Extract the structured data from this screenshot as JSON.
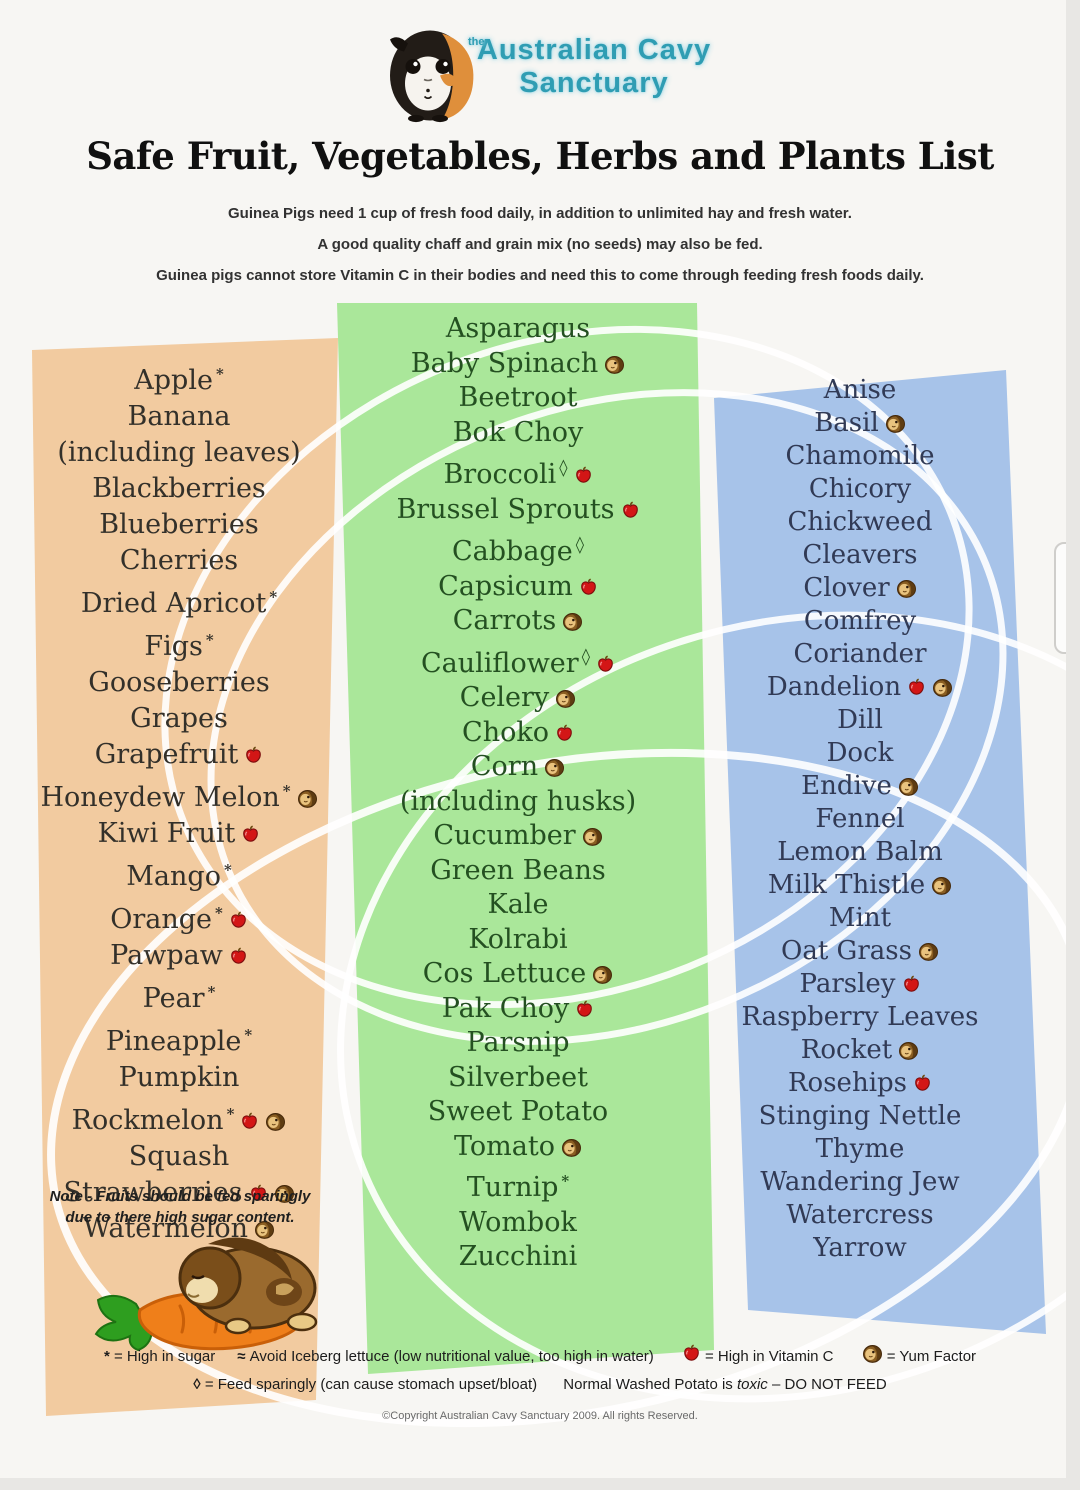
{
  "logo": {
    "prefix": "the",
    "line1": "Australian Cavy",
    "line2": "Sanctuary"
  },
  "title": "Safe Fruit, Vegetables, Herbs and Plants List",
  "intro": [
    "Guinea Pigs need 1 cup of fresh food daily, in addition to unlimited hay and fresh water.",
    "A good quality chaff and grain mix (no seeds) may also be fed.",
    "Guinea pigs cannot store Vitamin C in their bodies and need this to come through feeding fresh foods daily."
  ],
  "colors": {
    "fruits_bg": "#f2cba0",
    "vegetables_bg": "#aae79a",
    "herbs_bg": "#a7c3e9",
    "logo_teal": "#2f9db3",
    "vitamin_c_red": "#d31616",
    "yum_brown": "#7d551f"
  },
  "columns": [
    {
      "id": "fruits",
      "items": [
        {
          "label": "Apple",
          "marks": [
            "sugar"
          ]
        },
        {
          "label": "Banana",
          "cont": "(including leaves)"
        },
        {
          "label": "Blackberries"
        },
        {
          "label": "Blueberries"
        },
        {
          "label": "Cherries"
        },
        {
          "label": "Dried Apricot",
          "marks": [
            "sugar"
          ]
        },
        {
          "label": "Figs",
          "marks": [
            "sugar"
          ]
        },
        {
          "label": "Gooseberries"
        },
        {
          "label": "Grapes"
        },
        {
          "label": "Grapefruit",
          "marks": [
            "vitc"
          ]
        },
        {
          "label": "Honeydew Melon",
          "marks": [
            "sugar",
            "yum"
          ]
        },
        {
          "label": "Kiwi Fruit",
          "marks": [
            "vitc"
          ]
        },
        {
          "label": "Mango",
          "marks": [
            "sugar"
          ]
        },
        {
          "label": "Orange",
          "marks": [
            "sugar",
            "vitc"
          ]
        },
        {
          "label": "Pawpaw",
          "marks": [
            "vitc"
          ]
        },
        {
          "label": "Pear",
          "marks": [
            "sugar"
          ]
        },
        {
          "label": "Pineapple",
          "marks": [
            "sugar"
          ]
        },
        {
          "label": "Pumpkin"
        },
        {
          "label": "Rockmelon",
          "marks": [
            "sugar",
            "vitc",
            "yum"
          ]
        },
        {
          "label": "Squash"
        },
        {
          "label": "Strawberries",
          "marks": [
            "vitc",
            "yum"
          ]
        },
        {
          "label": "Watermelon",
          "marks": [
            "yum"
          ]
        }
      ],
      "note": "Note - Fruits should be fed sparingly due to there high sugar content."
    },
    {
      "id": "vegetables",
      "items": [
        {
          "label": "Asparagus"
        },
        {
          "label": "Baby Spinach",
          "marks": [
            "yum"
          ]
        },
        {
          "label": "Beetroot"
        },
        {
          "label": "Bok Choy"
        },
        {
          "label": "Broccoli",
          "marks": [
            "sparingly",
            "vitc"
          ]
        },
        {
          "label": "Brussel Sprouts",
          "marks": [
            "vitc"
          ]
        },
        {
          "label": "Cabbage",
          "marks": [
            "sparingly"
          ]
        },
        {
          "label": "Capsicum",
          "marks": [
            "vitc"
          ]
        },
        {
          "label": "Carrots",
          "marks": [
            "yum"
          ]
        },
        {
          "label": "Cauliflower",
          "marks": [
            "sparingly",
            "vitc"
          ]
        },
        {
          "label": "Celery",
          "marks": [
            "yum"
          ]
        },
        {
          "label": "Choko",
          "marks": [
            "vitc"
          ]
        },
        {
          "label": "Corn",
          "marks": [
            "yum"
          ],
          "cont": "(including husks)"
        },
        {
          "label": "Cucumber",
          "marks": [
            "yum"
          ]
        },
        {
          "label": "Green Beans"
        },
        {
          "label": "Kale"
        },
        {
          "label": "Kolrabi"
        },
        {
          "label": "Cos Lettuce",
          "marks": [
            "yum"
          ]
        },
        {
          "label": "Pak Choy",
          "marks": [
            "vitc"
          ]
        },
        {
          "label": "Parsnip"
        },
        {
          "label": "Silverbeet"
        },
        {
          "label": "Sweet Potato"
        },
        {
          "label": "Tomato",
          "marks": [
            "yum"
          ]
        },
        {
          "label": "Turnip",
          "marks": [
            "sugar"
          ]
        },
        {
          "label": "Wombok"
        },
        {
          "label": "Zucchini"
        }
      ]
    },
    {
      "id": "herbs",
      "items": [
        {
          "label": "Anise"
        },
        {
          "label": "Basil",
          "marks": [
            "yum"
          ]
        },
        {
          "label": "Chamomile"
        },
        {
          "label": "Chicory"
        },
        {
          "label": "Chickweed"
        },
        {
          "label": "Cleavers"
        },
        {
          "label": "Clover",
          "marks": [
            "yum"
          ]
        },
        {
          "label": "Comfrey"
        },
        {
          "label": "Coriander"
        },
        {
          "label": "Dandelion",
          "marks": [
            "vitc",
            "yum"
          ]
        },
        {
          "label": "Dill"
        },
        {
          "label": "Dock"
        },
        {
          "label": "Endive",
          "marks": [
            "yum"
          ]
        },
        {
          "label": "Fennel"
        },
        {
          "label": "Lemon Balm"
        },
        {
          "label": "Milk Thistle",
          "marks": [
            "yum"
          ]
        },
        {
          "label": "Mint"
        },
        {
          "label": "Oat Grass",
          "marks": [
            "yum"
          ]
        },
        {
          "label": "Parsley",
          "marks": [
            "vitc"
          ]
        },
        {
          "label": "Raspberry Leaves"
        },
        {
          "label": "Rocket",
          "marks": [
            "yum"
          ]
        },
        {
          "label": "Rosehips",
          "marks": [
            "vitc"
          ]
        },
        {
          "label": "Stinging Nettle"
        },
        {
          "label": "Thyme"
        },
        {
          "label": "Wandering Jew"
        },
        {
          "label": "Watercress"
        },
        {
          "label": "Yarrow"
        }
      ]
    }
  ],
  "legend": {
    "row1": [
      {
        "symbol": "*",
        "text": "= High in sugar"
      },
      {
        "symbol": "≈",
        "text": "Avoid Iceberg lettuce (low nutritional value, too high in water)"
      },
      {
        "icon": "vitc",
        "text": "= High in Vitamin C"
      },
      {
        "icon": "yum",
        "text": "= Yum Factor"
      }
    ],
    "row2_symbol": "◊",
    "row2_text": "= Feed sparingly (can cause stomach upset/bloat)",
    "row2b_pre": "Normal Washed Potato is ",
    "row2b_italic": "toxic",
    "row2b_post": " – DO NOT FEED"
  },
  "copyright": "©Copyright Australian Cavy Sanctuary 2009. All rights Reserved."
}
